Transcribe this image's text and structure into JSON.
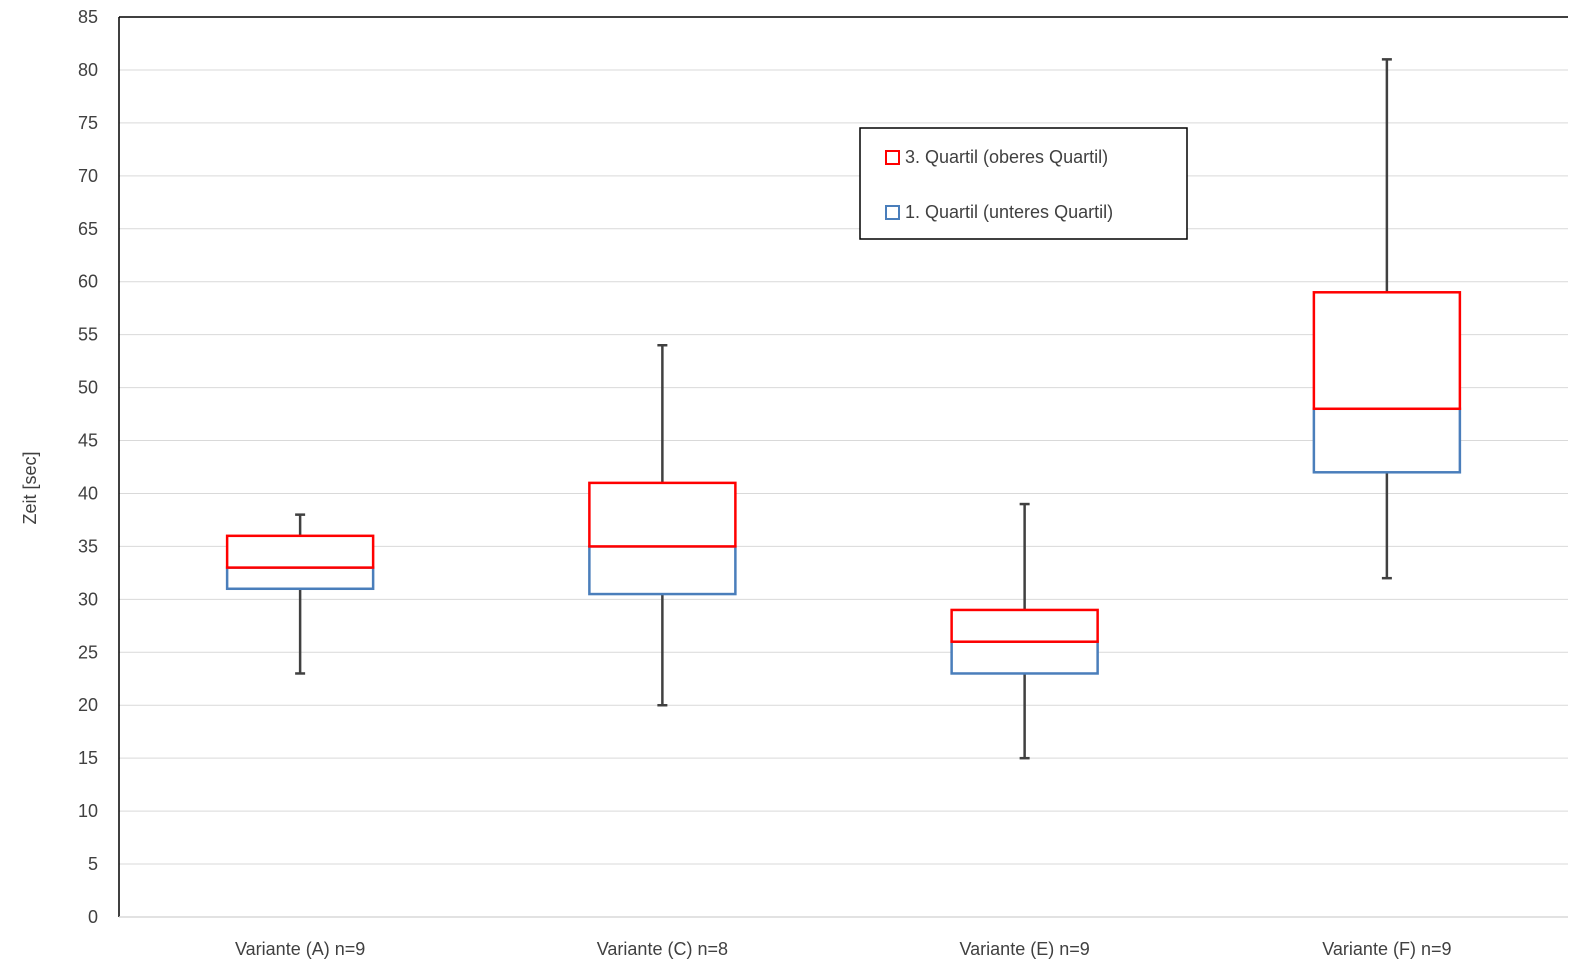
{
  "chart_data": {
    "type": "boxplot",
    "ylabel": "Zeit [sec]",
    "xlabel": "",
    "ylim": [
      0,
      85
    ],
    "ytick_step": 5,
    "grid": true,
    "categories": [
      "Variante (A) n=9",
      "Variante (C) n=8",
      "Variante (E) n=9",
      "Variante (F) n=9"
    ],
    "boxes": [
      {
        "category": "Variante (A) n=9",
        "min": 23,
        "q1": 31,
        "median": 33,
        "q3": 36,
        "max": 38
      },
      {
        "category": "Variante (C) n=8",
        "min": 20,
        "q1": 30.5,
        "median": 35,
        "q3": 41,
        "max": 54
      },
      {
        "category": "Variante (E) n=9",
        "min": 15,
        "q1": 23,
        "median": 26,
        "q3": 29,
        "max": 39
      },
      {
        "category": "Variante (F) n=9",
        "min": 32,
        "q1": 42,
        "median": 48,
        "q3": 59,
        "max": 81
      }
    ],
    "legend": {
      "placement": "top-center",
      "items": [
        {
          "label": "3. Quartil (oberes Quartil)",
          "color": "#ff0000"
        },
        {
          "label": "1. Quartil (unteres Quartil)",
          "color": "#4a7ebb"
        }
      ]
    },
    "colors": {
      "upper_box": "#ff0000",
      "lower_box": "#4a7ebb",
      "whisker": "#404040",
      "grid": "#d9d9d9",
      "axis": "#000000"
    }
  }
}
